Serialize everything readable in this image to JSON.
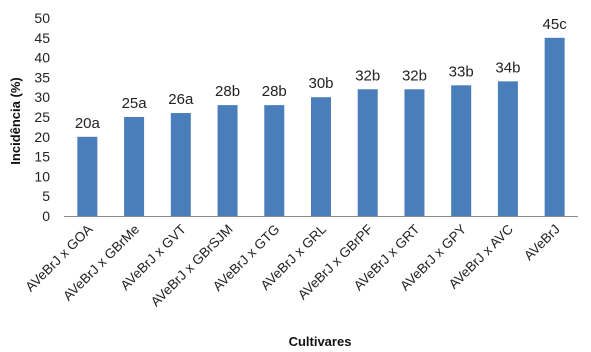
{
  "chart_data": {
    "type": "bar",
    "title": "",
    "xlabel": "Cultivares",
    "ylabel": "Incidência (%)",
    "ylim": [
      0,
      50
    ],
    "yticks": [
      0,
      5,
      10,
      15,
      20,
      25,
      30,
      35,
      40,
      45,
      50
    ],
    "grid": false,
    "legend": "none",
    "bar_color": "#4a7ebb",
    "categories": [
      "AVeBrJ x GOA",
      "AVeBrJ x GBrMe",
      "AVeBrJ x GVT",
      "AVeBrJ x GBrSJM",
      "AVeBrJ x GTG",
      "AVeBrJ x GRL",
      "AVeBrJ x GBrPF",
      "AVeBrJ x GRT",
      "AVeBrJ x GPY",
      "AVeBrJ x AVC",
      "AVeBrJ"
    ],
    "values": [
      20,
      25,
      26,
      28,
      28,
      30,
      32,
      32,
      33,
      34,
      45
    ],
    "data_labels": [
      "20a",
      "25a",
      "26a",
      "28b",
      "28b",
      "30b",
      "32b",
      "32b",
      "33b",
      "34b",
      "45c"
    ]
  }
}
